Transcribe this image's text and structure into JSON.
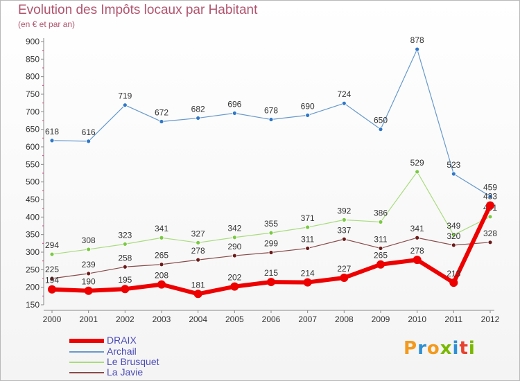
{
  "header": {
    "title": "Evolution des Impôts locaux par Habitant",
    "subtitle": "(en € et par an)"
  },
  "logo": {
    "letters": [
      "P",
      "r",
      "o",
      "x",
      "i",
      "t",
      "i"
    ],
    "colors": [
      "#f39a1d",
      "#2f8fd3",
      "#f39a1d",
      "#7ab800",
      "#2f8fd3",
      "#e8422e",
      "#7ab800"
    ]
  },
  "chart_data": {
    "type": "line",
    "x": [
      "2000",
      "2001",
      "2002",
      "2003",
      "2004",
      "2005",
      "2006",
      "2007",
      "2008",
      "2009",
      "2010",
      "2011",
      "2012"
    ],
    "yticks": [
      150,
      200,
      250,
      300,
      350,
      400,
      450,
      500,
      550,
      600,
      650,
      700,
      750,
      800,
      850,
      900
    ],
    "ylim": [
      150,
      900
    ],
    "grid": false,
    "legend_position": "bottom-left",
    "series": [
      {
        "name": "Archail",
        "color": "#6699cc",
        "marker": "#2f78c8",
        "width": 1.2,
        "values": [
          618,
          616,
          719,
          672,
          682,
          696,
          678,
          690,
          724,
          650,
          878,
          523,
          459
        ]
      },
      {
        "name": "Le Brusquet",
        "color": "#a8dc7c",
        "marker": "#7ac943",
        "width": 1.2,
        "values": [
          294,
          308,
          323,
          341,
          327,
          342,
          355,
          371,
          392,
          386,
          529,
          349,
          401
        ]
      },
      {
        "name": "La Javie",
        "color": "#8a4a4a",
        "marker": "#6b1a1a",
        "width": 1.2,
        "values": [
          225,
          239,
          258,
          265,
          278,
          290,
          299,
          311,
          337,
          311,
          341,
          320,
          328
        ]
      },
      {
        "name": "DRAIX",
        "color": "#ee0000",
        "marker": "#ee0000",
        "width": 6,
        "values": [
          194,
          190,
          195,
          208,
          181,
          202,
          215,
          214,
          227,
          265,
          278,
          213,
          433
        ]
      }
    ],
    "legend_order": [
      "DRAIX",
      "Archail",
      "Le Brusquet",
      "La Javie"
    ]
  }
}
